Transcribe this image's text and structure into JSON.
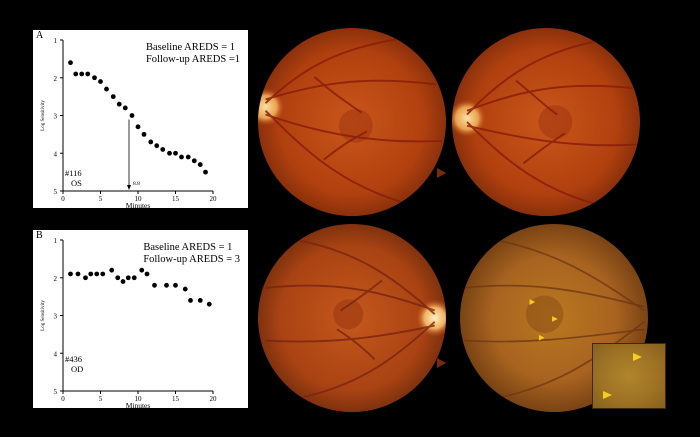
{
  "panels": [
    {
      "letter": "A",
      "baseline": "Baseline AREDS = 1",
      "followup": "Follow-up AREDS =1",
      "subject": "#116",
      "eye": "OS",
      "annotation": "8.8"
    },
    {
      "letter": "B",
      "baseline": "Baseline AREDS = 1",
      "followup": "Follow-up AREDS = 3",
      "subject": "#436",
      "eye": "OD"
    }
  ],
  "colors": {
    "fundus_center": "#c14a12",
    "fundus_edge": "#7a2a0a",
    "vessel": "#8a1e0a",
    "disc": "#f2c27a",
    "arrow": "#f5d01a"
  },
  "chart_data": [
    {
      "type": "scatter",
      "xlabel": "Minutes",
      "ylabel": "Log Sensitivity",
      "xlim": [
        0,
        20
      ],
      "ylim": [
        5,
        1
      ],
      "xticks": [
        "0",
        "5",
        "10",
        "15",
        "20"
      ],
      "yticks": [
        "1",
        "2",
        "3",
        "4",
        "5"
      ],
      "points": [
        [
          1,
          1.6
        ],
        [
          1.7,
          1.9
        ],
        [
          2.5,
          1.9
        ],
        [
          3.3,
          1.9
        ],
        [
          4.2,
          2.0
        ],
        [
          5,
          2.1
        ],
        [
          5.8,
          2.3
        ],
        [
          6.7,
          2.5
        ],
        [
          7.5,
          2.7
        ],
        [
          8.3,
          2.8
        ],
        [
          9.2,
          3.0
        ],
        [
          10,
          3.3
        ],
        [
          10.8,
          3.5
        ],
        [
          11.7,
          3.7
        ],
        [
          12.5,
          3.8
        ],
        [
          13.3,
          3.9
        ],
        [
          14.2,
          4.0
        ],
        [
          15,
          4.0
        ],
        [
          15.8,
          4.1
        ],
        [
          16.7,
          4.1
        ],
        [
          17.5,
          4.2
        ],
        [
          18.3,
          4.3
        ],
        [
          19,
          4.5
        ]
      ],
      "marker_x": 8.8
    },
    {
      "type": "scatter",
      "xlabel": "Minutes",
      "ylabel": "Log Sensitivity",
      "xlim": [
        0,
        20
      ],
      "ylim": [
        5,
        1
      ],
      "xticks": [
        "0",
        "5",
        "10",
        "15",
        "20"
      ],
      "yticks": [
        "1",
        "2",
        "3",
        "4",
        "5"
      ],
      "points": [
        [
          1,
          1.9
        ],
        [
          2,
          1.9
        ],
        [
          3,
          2.0
        ],
        [
          3.7,
          1.9
        ],
        [
          4.5,
          1.9
        ],
        [
          5.3,
          1.9
        ],
        [
          6.5,
          1.8
        ],
        [
          7.3,
          2.0
        ],
        [
          8,
          2.1
        ],
        [
          8.7,
          2.0
        ],
        [
          9.5,
          2.0
        ],
        [
          10.5,
          1.8
        ],
        [
          11.2,
          1.9
        ],
        [
          12.2,
          2.2
        ],
        [
          13.8,
          2.2
        ],
        [
          15,
          2.2
        ],
        [
          16.3,
          2.3
        ],
        [
          17,
          2.6
        ],
        [
          18.3,
          2.6
        ],
        [
          19.5,
          2.7
        ]
      ]
    }
  ]
}
